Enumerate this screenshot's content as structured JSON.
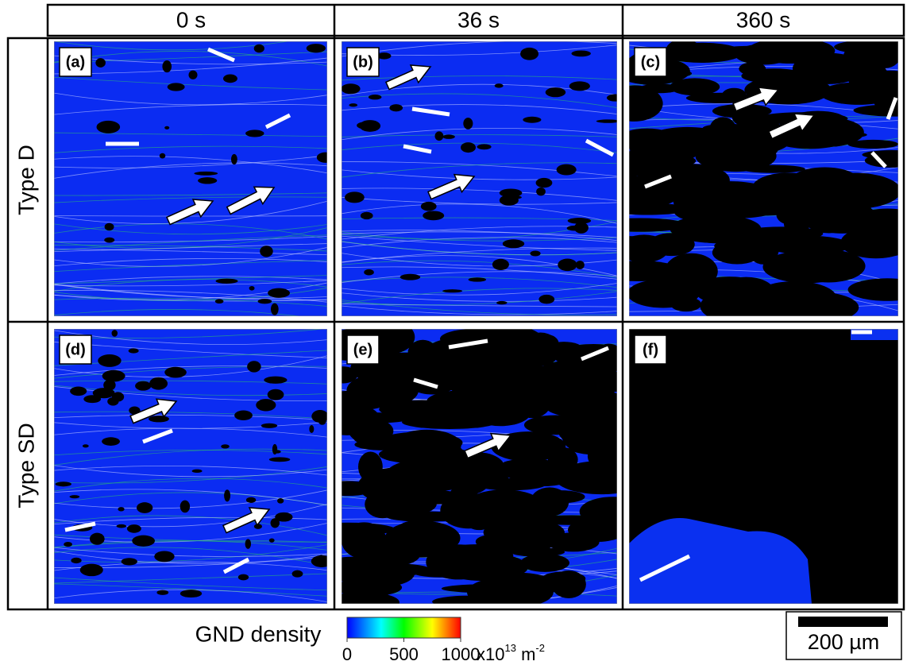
{
  "columns": [
    "0 s",
    "36 s",
    "360 s"
  ],
  "rows": [
    "Type D",
    "Type SD"
  ],
  "panels": [
    "(a)",
    "(b)",
    "(c)",
    "(d)",
    "(e)",
    "(f)"
  ],
  "colorbar": {
    "label": "GND density",
    "range": [
      0,
      1000
    ],
    "ticks": [
      0,
      500,
      1000
    ],
    "unit": [
      "x10",
      "13",
      " m",
      "-2"
    ]
  },
  "scale_bar": "200 µm"
}
